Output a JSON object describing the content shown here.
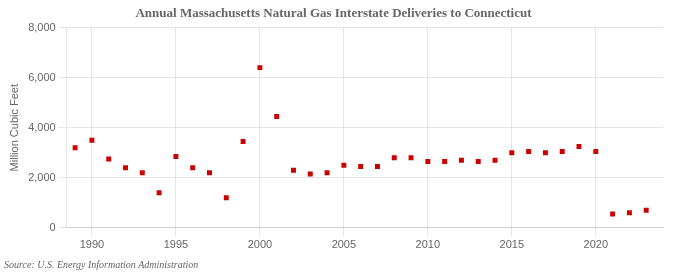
{
  "chart_data": {
    "type": "scatter",
    "title": "Annual Massachusetts Natural Gas Interstate Deliveries to Connecticut",
    "ylabel": "Million Cubic Feet",
    "source": "Source: U.S. Energy Information Administration",
    "x": [
      1989,
      1990,
      1991,
      1992,
      1993,
      1994,
      1995,
      1996,
      1997,
      1998,
      1999,
      2000,
      2001,
      2002,
      2003,
      2004,
      2005,
      2006,
      2007,
      2008,
      2009,
      2010,
      2011,
      2012,
      2013,
      2014,
      2015,
      2016,
      2017,
      2018,
      2019,
      2020,
      2021,
      2022,
      2023
    ],
    "values": [
      3200,
      3500,
      2750,
      2400,
      2200,
      1400,
      2850,
      2400,
      2200,
      1200,
      3450,
      6400,
      4450,
      2300,
      2150,
      2200,
      2500,
      2450,
      2450,
      2800,
      2800,
      2650,
      2650,
      2700,
      2650,
      2700,
      3000,
      3050,
      3000,
      3050,
      3250,
      3050,
      550,
      600,
      700
    ],
    "color": "#cc0000",
    "marker": "square",
    "xlim": [
      1988.5,
      2024
    ],
    "xticks": [
      1990,
      1995,
      2000,
      2005,
      2010,
      2015,
      2020
    ],
    "ylim": [
      0,
      8000
    ],
    "yticks": [
      0,
      {
        "value": 2000,
        "label": "2,000"
      },
      {
        "value": 4000,
        "label": "4,000"
      },
      {
        "value": 6000,
        "label": "6,000"
      },
      {
        "value": 8000,
        "label": "8,000"
      }
    ],
    "grid": true
  }
}
